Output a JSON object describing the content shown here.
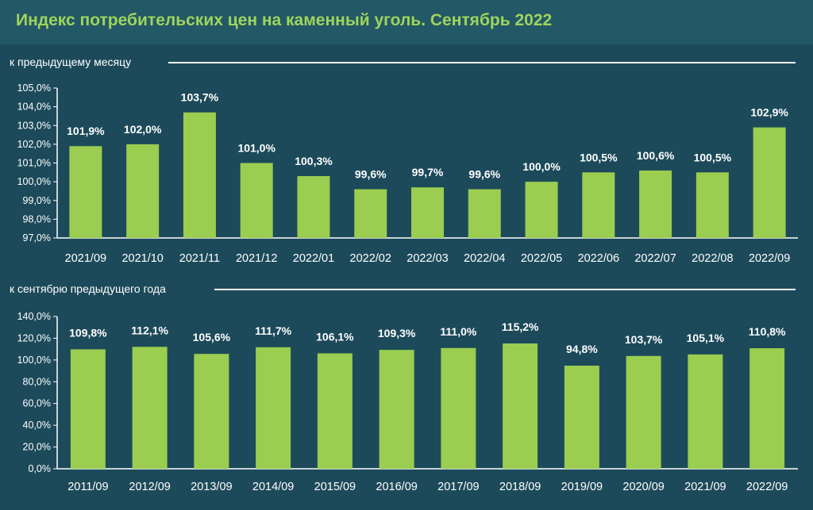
{
  "title": "Индекс потребительских цен на каменный уголь. Сентябрь 2022",
  "colors": {
    "background": "#1c4a5a",
    "title_band": "#235867",
    "title_text": "#9fd45c",
    "bar": "#9acd50",
    "axis": "#ffffff"
  },
  "chart_data": [
    {
      "type": "bar",
      "label": "к предыдущему месяцу",
      "categories": [
        "2021/09",
        "2021/10",
        "2021/11",
        "2021/12",
        "2022/01",
        "2022/02",
        "2022/03",
        "2022/04",
        "2022/05",
        "2022/06",
        "2022/07",
        "2022/08",
        "2022/09"
      ],
      "values": [
        101.9,
        102.0,
        103.7,
        101.0,
        100.3,
        99.6,
        99.7,
        99.6,
        100.0,
        100.5,
        100.6,
        100.5,
        102.9
      ],
      "value_labels": [
        "101,9%",
        "102,0%",
        "103,7%",
        "101,0%",
        "100,3%",
        "99,6%",
        "99,7%",
        "99,6%",
        "100,0%",
        "100,5%",
        "100,6%",
        "100,5%",
        "102,9%"
      ],
      "ylim": [
        97,
        105
      ],
      "yticks": [
        97,
        98,
        99,
        100,
        101,
        102,
        103,
        104,
        105
      ],
      "ytick_labels": [
        "97,0%",
        "98,0%",
        "99,0%",
        "100,0%",
        "101,0%",
        "102,0%",
        "103,0%",
        "104,0%",
        "105,0%"
      ],
      "grid": false
    },
    {
      "type": "bar",
      "label": "к сентябрю предыдущего года",
      "categories": [
        "2011/09",
        "2012/09",
        "2013/09",
        "2014/09",
        "2015/09",
        "2016/09",
        "2017/09",
        "2018/09",
        "2019/09",
        "2020/09",
        "2021/09",
        "2022/09"
      ],
      "values": [
        109.8,
        112.1,
        105.6,
        111.7,
        106.1,
        109.3,
        111.0,
        115.2,
        94.8,
        103.7,
        105.1,
        110.8
      ],
      "value_labels": [
        "109,8%",
        "112,1%",
        "105,6%",
        "111,7%",
        "106,1%",
        "109,3%",
        "111,0%",
        "115,2%",
        "94,8%",
        "103,7%",
        "105,1%",
        "110,8%"
      ],
      "ylim": [
        0,
        140
      ],
      "yticks": [
        0,
        20,
        40,
        60,
        80,
        100,
        120,
        140
      ],
      "ytick_labels": [
        "0,0%",
        "20,0%",
        "40,0%",
        "60,0%",
        "80,0%",
        "100,0%",
        "120,0%",
        "140,0%"
      ],
      "grid": false
    }
  ]
}
